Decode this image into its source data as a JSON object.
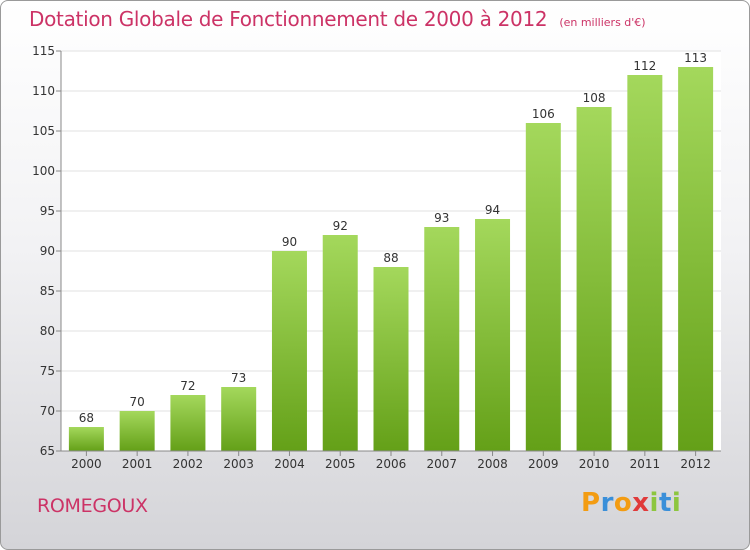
{
  "header": {
    "title": "Dotation Globale de Fonctionnement de 2000 à 2012",
    "units": "(en milliers d'€)"
  },
  "footer": {
    "commune": "ROMEGOUX",
    "logo_letters": [
      {
        "char": "P",
        "color": "#f39c12"
      },
      {
        "char": "r",
        "color": "#3a8fd9"
      },
      {
        "char": "o",
        "color": "#f39c12"
      },
      {
        "char": "x",
        "color": "#e03a3a"
      },
      {
        "char": "i",
        "color": "#8dc63f"
      },
      {
        "char": "t",
        "color": "#3a8fd9"
      },
      {
        "char": "i",
        "color": "#8dc63f"
      }
    ]
  },
  "colors": {
    "title": "#cc3366",
    "bar_light": "#a4d85c",
    "bar_dark": "#64a018",
    "grid": "#e2e2e2",
    "axis": "#888888",
    "label": "#333333"
  },
  "chart_data": {
    "type": "bar",
    "title": "Dotation Globale de Fonctionnement de 2000 à 2012",
    "subtitle": "(en milliers d'€)",
    "xlabel": "",
    "ylabel": "",
    "categories": [
      "2000",
      "2001",
      "2002",
      "2003",
      "2004",
      "2005",
      "2006",
      "2007",
      "2008",
      "2009",
      "2010",
      "2011",
      "2012"
    ],
    "values": [
      68,
      70,
      72,
      73,
      90,
      92,
      88,
      93,
      94,
      106,
      108,
      112,
      113
    ],
    "ylim": [
      65,
      115
    ],
    "yticks": [
      65,
      70,
      75,
      80,
      85,
      90,
      95,
      100,
      105,
      110,
      115
    ],
    "grid": true,
    "legend": "none"
  }
}
